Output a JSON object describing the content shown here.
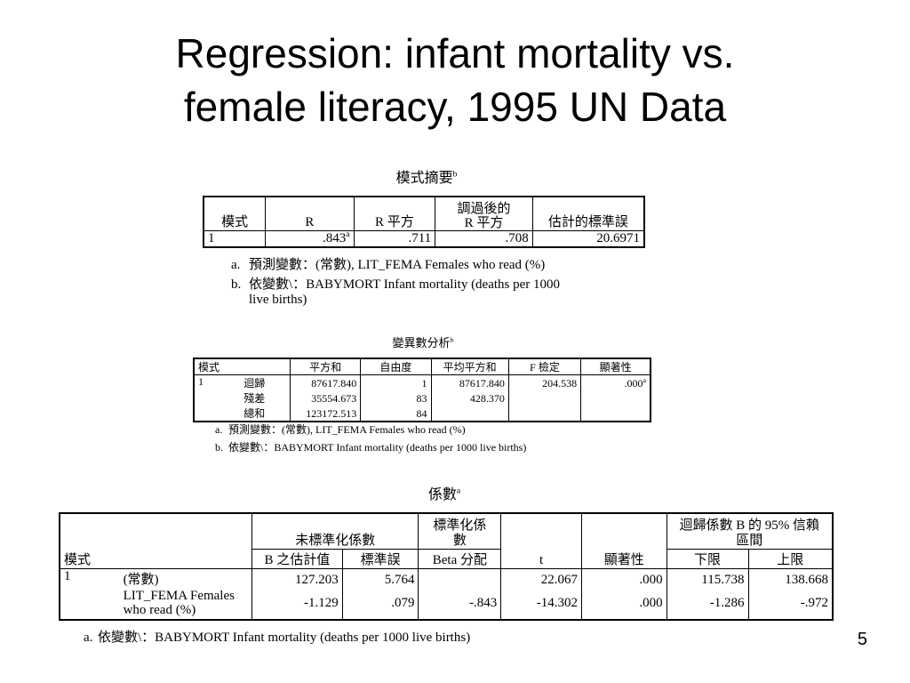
{
  "slide": {
    "title_line1": "Regression: infant mortality vs.",
    "title_line2": "female literacy, 1995 UN Data",
    "page_number": "5"
  },
  "model_summary": {
    "title": "模式摘要",
    "title_sup": "b",
    "headers": {
      "model": "模式",
      "r": "R",
      "r_square": "R 平方",
      "adj_r_square_line1": "調過後的",
      "adj_r_square_line2": "R 平方",
      "std_error": "估計的標準誤"
    },
    "row": {
      "model": "1",
      "r": ".843",
      "r_sup": "a",
      "r_square": ".711",
      "adj_r_square": ".708",
      "std_error": "20.6971"
    },
    "notes": {
      "a_label": "a.",
      "a_text": "預測變數：(常數), LIT_FEMA  Females who read (%)",
      "b_label": "b.",
      "b_text_line1": "依變數\\：BABYMORT  Infant mortality (deaths per 1000",
      "b_text_line2": "live births)"
    }
  },
  "anova": {
    "title": "變異數分析",
    "title_sup": "b",
    "headers": {
      "model": "模式",
      "sum_sq": "平方和",
      "df": "自由度",
      "mean_sq": "平均平方和",
      "f": "F 檢定",
      "sig": "顯著性"
    },
    "model": "1",
    "rows": [
      {
        "label": "迴歸",
        "sum_sq": "87617.840",
        "df": "1",
        "mean_sq": "87617.840",
        "f": "204.538",
        "sig": ".000",
        "sig_sup": "a"
      },
      {
        "label": "殘差",
        "sum_sq": "35554.673",
        "df": "83",
        "mean_sq": "428.370",
        "f": "",
        "sig": "",
        "sig_sup": ""
      },
      {
        "label": "總和",
        "sum_sq": "123172.513",
        "df": "84",
        "mean_sq": "",
        "f": "",
        "sig": "",
        "sig_sup": ""
      }
    ],
    "notes": {
      "a_label": "a.",
      "a_text": "預測變數：(常數), LIT_FEMA  Females who read (%)",
      "b_label": "b.",
      "b_text": "依變數\\：BABYMORT  Infant mortality (deaths per 1000 live births)"
    }
  },
  "coefficients": {
    "title": "係數",
    "title_sup": "a",
    "headers": {
      "unstd": "未標準化係數",
      "std_line1": "標準化係",
      "std_line2": "數",
      "ci_line1": "迴歸係數 B 的 95% 信賴",
      "ci_line2": "區間",
      "model": "模式",
      "b": "B 之估計值",
      "se": "標準誤",
      "beta": "Beta 分配",
      "t": "t",
      "sig": "顯著性",
      "lower": "下限",
      "upper": "上限"
    },
    "model": "1",
    "rows": [
      {
        "label_line1": "(常數)",
        "label_line2": "",
        "b": "127.203",
        "se": "5.764",
        "beta": "",
        "t": "22.067",
        "sig": ".000",
        "lower": "115.738",
        "upper": "138.668"
      },
      {
        "label_line1": "LIT_FEMA  Females",
        "label_line2": "who read (%)",
        "b": "-1.129",
        "se": ".079",
        "beta": "-.843",
        "t": "-14.302",
        "sig": ".000",
        "lower": "-1.286",
        "upper": "-.972"
      }
    ],
    "notes": {
      "a_label": "a.",
      "a_text": "依變數\\：BABYMORT  Infant mortality (deaths per 1000 live births)"
    }
  }
}
